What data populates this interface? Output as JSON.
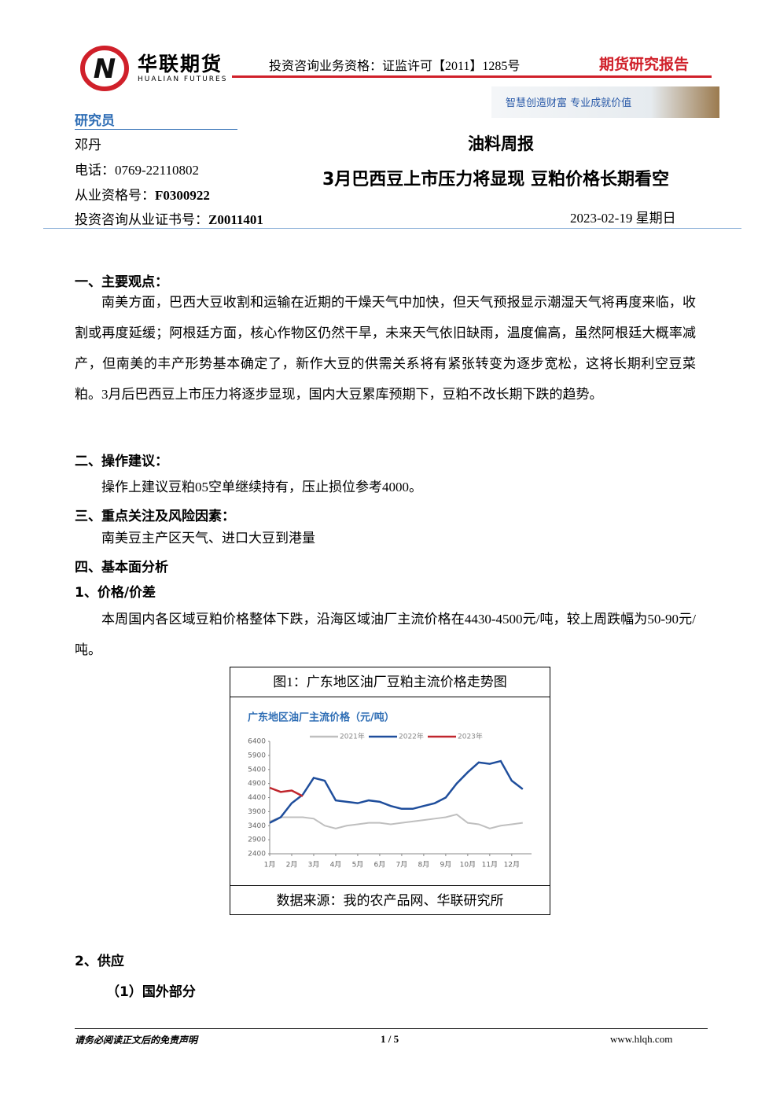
{
  "header": {
    "company_cn": "华联期货",
    "company_en": "HUALIAN FUTURES",
    "qualification": "投资咨询业务资格：证监许可【2011】1285号",
    "report_type": "期货研究报告",
    "slogan": "智慧创造财富 专业成就价值"
  },
  "researcher": {
    "heading": "研究员",
    "name": "邓丹",
    "phone": "电话：0769-22110802",
    "cert_label": "从业资格号：",
    "cert": "F0300922",
    "advisory_label": "投资咨询从业证书号：",
    "advisory": "Z0011401"
  },
  "report": {
    "category": "油料周报",
    "title": "3月巴西豆上市压力将显现 豆粕价格长期看空",
    "date": "2023-02-19 星期日"
  },
  "body": {
    "s1": "一、主要观点：",
    "p1": "南美方面，巴西大豆收割和运输在近期的干燥天气中加快，但天气预报显示潮湿天气将再度来临，收割或再度延缓；阿根廷方面，核心作物区仍然干旱，未来天气依旧缺雨，温度偏高，虽然阿根廷大概率减产，但南美的丰产形势基本确定了，新作大豆的供需关系将有紧张转变为逐步宽松，这将长期利空豆菜粕。3月后巴西豆上市压力将逐步显现，国内大豆累库预期下，豆粕不改长期下跌的趋势。",
    "s2": "二、操作建议：",
    "p2": "操作上建议豆粕05空单继续持有，压止损位参考4000。",
    "s3": "三、重点关注及风险因素：",
    "p3": "南美豆主产区天气、进口大豆到港量",
    "s4": "四、基本面分析",
    "s41": "1、价格/价差",
    "p4": "本周国内各区域豆粕价格整体下跌，沿海区域油厂主流价格在4430-4500元/吨，较上周跌幅为50-90元/吨。",
    "s42": "2、供应",
    "s421": "（1）国外部分"
  },
  "figure": {
    "caption": "图1：广东地区油厂豆粕主流价格走势图",
    "source": "数据来源：我的农产品网、华联研究所"
  },
  "chart_data": {
    "type": "line",
    "title": "广东地区油厂主流价格（元/吨）",
    "x": [
      1,
      1.5,
      2,
      2.5,
      3,
      3.5,
      4,
      4.5,
      5,
      5.5,
      6,
      6.5,
      7,
      7.5,
      8,
      8.5,
      9,
      9.5,
      10,
      10.5,
      11,
      11.5,
      12,
      12.5
    ],
    "series": [
      {
        "name": "2021年",
        "color": "#bfbfbf",
        "values": [
          3550,
          3700,
          3700,
          3700,
          3650,
          3400,
          3300,
          3400,
          3450,
          3500,
          3500,
          3450,
          3500,
          3550,
          3600,
          3650,
          3700,
          3800,
          3500,
          3450,
          3300,
          3400,
          3450,
          3500
        ]
      },
      {
        "name": "2022年",
        "color": "#1f4e9c",
        "values": [
          3500,
          3700,
          4200,
          4500,
          5100,
          5000,
          4300,
          4250,
          4200,
          4300,
          4250,
          4100,
          4000,
          4000,
          4100,
          4200,
          4400,
          4900,
          5300,
          5650,
          5600,
          5700,
          5000,
          4700
        ]
      },
      {
        "name": "2023年",
        "color": "#c0262d",
        "values": [
          4750,
          4600,
          4650,
          4450,
          null,
          null,
          null,
          null,
          null,
          null,
          null,
          null,
          null,
          null,
          null,
          null,
          null,
          null,
          null,
          null,
          null,
          null,
          null,
          null
        ]
      }
    ],
    "xlim": [
      1,
      12.9
    ],
    "xticks": [
      {
        "value": 1,
        "label": "1月"
      },
      {
        "value": 2,
        "label": "2月"
      },
      {
        "value": 3,
        "label": "3月"
      },
      {
        "value": 4,
        "label": "4月"
      },
      {
        "value": 5,
        "label": "5月"
      },
      {
        "value": 6,
        "label": "6月"
      },
      {
        "value": 7,
        "label": "7月"
      },
      {
        "value": 8,
        "label": "8月"
      },
      {
        "value": 9,
        "label": "9月"
      },
      {
        "value": 10,
        "label": "10月"
      },
      {
        "value": 11,
        "label": "11月"
      },
      {
        "value": 12,
        "label": "12月"
      }
    ],
    "ylim": [
      2400,
      6400
    ],
    "yticks": [
      2400,
      2900,
      3400,
      3900,
      4400,
      4900,
      5400,
      5900,
      6400
    ],
    "legend": "top"
  },
  "footer": {
    "disclaimer": "请务必阅读正文后的免责声明",
    "page": "1 / 5",
    "website": "www.hlqh.com"
  }
}
